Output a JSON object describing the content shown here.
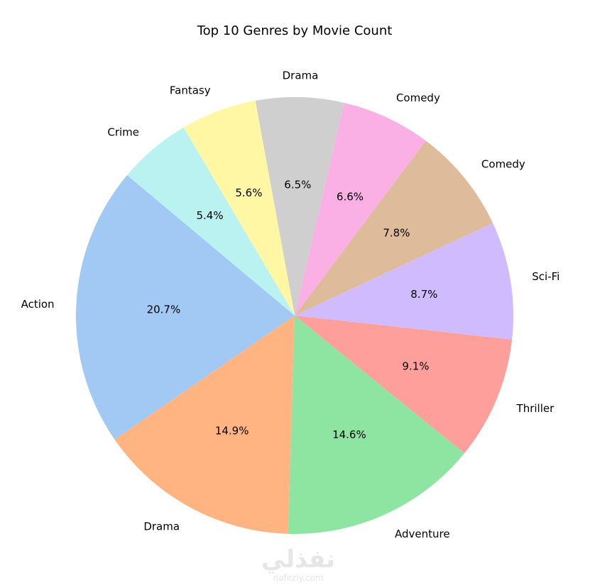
{
  "chart_data": {
    "type": "pie",
    "title": "Top 10 Genres by Movie Count",
    "start_angle_deg": 140,
    "direction": "counterclockwise",
    "slices": [
      {
        "label": "Action",
        "percent": 20.7,
        "pct_label": "20.7%",
        "color": "#a1c9f4"
      },
      {
        "label": "Drama",
        "percent": 14.9,
        "pct_label": "14.9%",
        "color": "#ffb482"
      },
      {
        "label": "Adventure",
        "percent": 14.6,
        "pct_label": "14.6%",
        "color": "#8de5a1"
      },
      {
        "label": "Thriller",
        "percent": 9.1,
        "pct_label": "9.1%",
        "color": "#ff9f9b"
      },
      {
        "label": "Sci-Fi",
        "percent": 8.7,
        "pct_label": "8.7%",
        "color": "#d0bbff"
      },
      {
        "label": "Comedy",
        "percent": 7.8,
        "pct_label": "7.8%",
        "color": "#debb9b"
      },
      {
        "label": "Comedy",
        "percent": 6.6,
        "pct_label": "6.6%",
        "color": "#fab0e4"
      },
      {
        "label": "Drama",
        "percent": 6.5,
        "pct_label": "6.5%",
        "color": "#cfcfcf"
      },
      {
        "label": "Fantasy",
        "percent": 5.6,
        "pct_label": "5.6%",
        "color": "#fff7a3"
      },
      {
        "label": "Crime",
        "percent": 5.4,
        "pct_label": "5.4%",
        "color": "#b9f2f0"
      }
    ]
  },
  "watermark": {
    "arabic": "نفذلي",
    "latin": "nafezly.com"
  }
}
